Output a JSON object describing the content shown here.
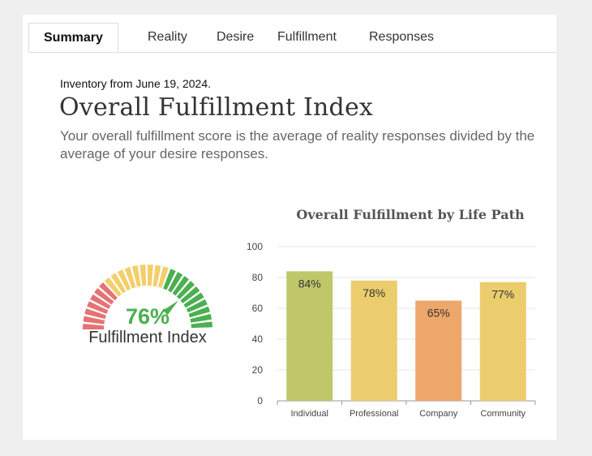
{
  "tabs": [
    {
      "label": "Summary",
      "active": true
    },
    {
      "label": "Reality",
      "active": false
    },
    {
      "label": "Desire",
      "active": false
    },
    {
      "label": "Fulfillment",
      "active": false
    },
    {
      "label": "Responses",
      "active": false
    }
  ],
  "inventory_date": "Inventory from June 19, 2024.",
  "heading": "Overall Fulfillment Index",
  "description": "Your overall fulfillment score is the average of reality responses divided by the average of your desire responses.",
  "gauge": {
    "value": 76,
    "value_text": "76%",
    "label": "Fulfillment Index",
    "colors": {
      "red": "#e57373",
      "yellow": "#f2cf6b",
      "green": "#4caf50"
    }
  },
  "chart_data": {
    "type": "bar",
    "title": "Overall Fulfillment by Life Path",
    "categories": [
      "Individual",
      "Professional",
      "Company",
      "Community"
    ],
    "values": [
      84,
      78,
      65,
      77
    ],
    "value_labels": [
      "84%",
      "78%",
      "65%",
      "77%"
    ],
    "colors": [
      "#bfc76a",
      "#ebcd6d",
      "#eea76a",
      "#ebcd6d"
    ],
    "ylim": [
      0,
      100
    ],
    "yticks": [
      0,
      20,
      40,
      60,
      80,
      100
    ],
    "grid": true,
    "xlabel": "",
    "ylabel": ""
  }
}
